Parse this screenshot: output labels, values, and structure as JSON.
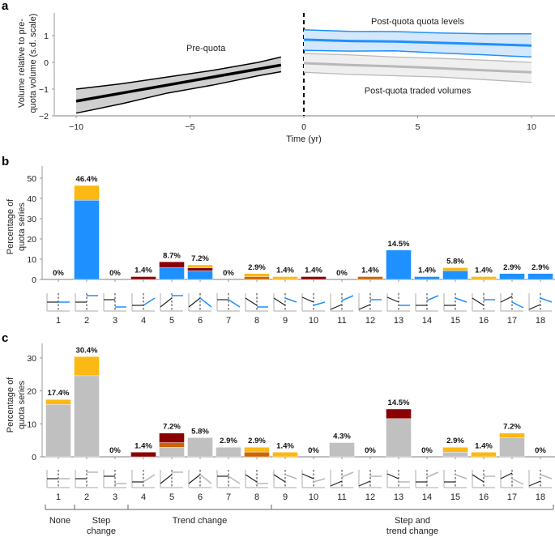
{
  "colors": {
    "blue": "#1e90ff",
    "blue_band": "#d4e7fb",
    "gray_bar": "#c0c0c0",
    "gray_line": "#b8b8b8",
    "gray_band": "#efefef",
    "yellow": "#fdb913",
    "orange": "#cc6600",
    "darkred": "#8b0000",
    "black": "#000000"
  },
  "chart_data": [
    {
      "panel": "a",
      "type": "line",
      "xlabel": "Time (yr)",
      "ylabel": "Volume relative to pre-quota volume (s.d. scale)",
      "ylabel_lines": [
        "Volume relative to pre-",
        "quota volume (s.d. scale)"
      ],
      "xlim": [
        -11,
        11
      ],
      "ylim": [
        -2,
        1.8
      ],
      "xticks": [
        -10,
        -5,
        0,
        5,
        10
      ],
      "xtick_labels": [
        "−10",
        "−5",
        "0",
        "5",
        "10"
      ],
      "yticks": [
        1,
        0,
        -1,
        -2
      ],
      "ytick_labels": [
        "1",
        "0",
        "−1",
        "−2"
      ],
      "vline_x": 0,
      "series": [
        {
          "name": "Pre-quota",
          "color_key": "black",
          "x": [
            -10,
            -8,
            -6,
            -4,
            -2,
            -1
          ],
          "mean": [
            -1.45,
            -1.15,
            -0.85,
            -0.55,
            -0.25,
            -0.1
          ],
          "upper": [
            -1.0,
            -0.8,
            -0.55,
            -0.3,
            0.0,
            0.2
          ],
          "lower": [
            -1.9,
            -1.55,
            -1.15,
            -0.85,
            -0.5,
            -0.35
          ]
        },
        {
          "name": "Post-quota quota levels",
          "color_key": "blue",
          "x": [
            0,
            2,
            4,
            6,
            8,
            10
          ],
          "mean": [
            0.85,
            0.8,
            0.78,
            0.73,
            0.68,
            0.63
          ],
          "upper": [
            1.22,
            1.16,
            1.15,
            1.1,
            1.07,
            1.07
          ],
          "lower": [
            0.45,
            0.42,
            0.43,
            0.35,
            0.28,
            0.2
          ]
        },
        {
          "name": "Post-quota traded volumes",
          "color_key": "gray_line",
          "x": [
            0,
            2,
            4,
            6,
            8,
            10
          ],
          "mean": [
            -0.03,
            -0.1,
            -0.15,
            -0.22,
            -0.3,
            -0.37
          ],
          "upper": [
            0.33,
            0.28,
            0.2,
            0.15,
            0.08,
            0.0
          ],
          "lower": [
            -0.37,
            -0.45,
            -0.5,
            -0.55,
            -0.65,
            -0.75
          ]
        }
      ],
      "annotations": [
        {
          "text": "Pre-quota",
          "x": -4.3,
          "y": 0.55,
          "color_key": "black"
        },
        {
          "text": "Post-quota quota levels",
          "x": 5,
          "y": 1.55,
          "color_key": "blue"
        },
        {
          "text": "Post-quota traded volumes",
          "x": 5,
          "y": -1.05,
          "color_key": "gray_band_text"
        }
      ]
    },
    {
      "panel": "b",
      "type": "bar",
      "stacked": true,
      "ylabel": "Percentage of quota series",
      "ylabel_lines": [
        "Percentage of",
        "quota series"
      ],
      "ylim": [
        0,
        55
      ],
      "yticks": [
        0,
        10,
        20,
        30,
        40,
        50
      ],
      "categories": [
        "1",
        "2",
        "3",
        "4",
        "5",
        "6",
        "7",
        "8",
        "9",
        "10",
        "11",
        "12",
        "13",
        "14",
        "15",
        "16",
        "17",
        "18"
      ],
      "segment_order": [
        "blue",
        "orange",
        "darkred",
        "yellow"
      ],
      "series": [
        {
          "name": "blue",
          "values": [
            0,
            39.1,
            0,
            0,
            5.8,
            4.3,
            0,
            0,
            0,
            0,
            0,
            0,
            14.5,
            1.4,
            4.3,
            0,
            2.9,
            2.9
          ]
        },
        {
          "name": "orange",
          "values": [
            0,
            0,
            0,
            0,
            0,
            0,
            0,
            1.4,
            0,
            0,
            0,
            1.4,
            0,
            0,
            0,
            0,
            0,
            0
          ]
        },
        {
          "name": "darkred",
          "values": [
            0,
            0,
            0,
            1.4,
            2.9,
            1.45,
            0,
            0,
            0,
            1.4,
            0,
            0,
            0,
            0,
            0,
            0,
            0,
            0
          ]
        },
        {
          "name": "yellow",
          "values": [
            0,
            7.3,
            0,
            0,
            0,
            1.45,
            0,
            1.5,
            1.4,
            0,
            0,
            0,
            0,
            0,
            1.5,
            1.4,
            0,
            0
          ]
        }
      ],
      "totals": [
        0,
        46.4,
        0,
        1.4,
        8.7,
        7.2,
        0,
        2.9,
        1.4,
        1.4,
        0,
        1.4,
        14.5,
        1.4,
        5.8,
        1.4,
        2.9,
        2.9
      ],
      "total_labels": [
        "0%",
        "46.4%",
        "0%",
        "1.4%",
        "8.7%",
        "7.2%",
        "0%",
        "2.9%",
        "1.4%",
        "1.4%",
        "0%",
        "1.4%",
        "14.5%",
        "1.4%",
        "5.8%",
        "1.4%",
        "2.9%",
        "2.9%"
      ],
      "icon_accent": "blue"
    },
    {
      "panel": "c",
      "type": "bar",
      "stacked": true,
      "ylabel": "Percentage of quota series",
      "ylabel_lines": [
        "Percentage of",
        "quota series"
      ],
      "ylim": [
        0,
        35
      ],
      "yticks": [
        0,
        10,
        20,
        30
      ],
      "categories": [
        "1",
        "2",
        "3",
        "4",
        "5",
        "6",
        "7",
        "8",
        "9",
        "10",
        "11",
        "12",
        "13",
        "14",
        "15",
        "16",
        "17",
        "18"
      ],
      "segment_order": [
        "gray_bar",
        "orange",
        "darkred",
        "yellow"
      ],
      "series": [
        {
          "name": "gray_bar",
          "values": [
            15.9,
            24.6,
            0,
            0,
            2.9,
            5.8,
            2.9,
            0,
            0,
            0,
            4.3,
            0,
            11.6,
            0,
            1.4,
            0,
            5.8,
            0
          ]
        },
        {
          "name": "orange",
          "values": [
            0,
            0,
            0,
            0,
            1.4,
            0,
            0,
            1.45,
            0,
            0,
            0,
            0,
            0,
            0,
            0,
            0,
            0,
            0
          ]
        },
        {
          "name": "darkred",
          "values": [
            0,
            0,
            0,
            1.4,
            2.9,
            0,
            0,
            0,
            0,
            0,
            0,
            0,
            2.9,
            0,
            0,
            0,
            0,
            0
          ]
        },
        {
          "name": "yellow",
          "values": [
            1.5,
            5.8,
            0,
            0,
            0,
            0,
            0,
            1.45,
            1.4,
            0,
            0,
            0,
            0,
            0,
            1.5,
            1.4,
            1.4,
            0
          ]
        }
      ],
      "totals": [
        17.4,
        30.4,
        0,
        1.4,
        7.2,
        5.8,
        2.9,
        2.9,
        1.4,
        0,
        4.3,
        0,
        14.5,
        0,
        2.9,
        1.4,
        7.2,
        0
      ],
      "total_labels": [
        "17.4%",
        "30.4%",
        "0%",
        "1.4%",
        "7.2%",
        "5.8%",
        "2.9%",
        "2.9%",
        "1.4%",
        "0%",
        "4.3%",
        "0%",
        "14.5%",
        "0%",
        "2.9%",
        "1.4%",
        "7.2%",
        "0%"
      ],
      "icon_accent": "gray_line"
    }
  ],
  "panels": {
    "a": {
      "letter": "a"
    },
    "b": {
      "letter": "b"
    },
    "c": {
      "letter": "c"
    }
  },
  "icons": [
    {
      "id": 1,
      "pre": "flat-mid",
      "post": "flat-mid"
    },
    {
      "id": 2,
      "pre": "flat-mid",
      "post": "flat-high"
    },
    {
      "id": 3,
      "pre": "flat-high",
      "post": "flat-low"
    },
    {
      "id": 4,
      "pre": "flat-low",
      "post": "up"
    },
    {
      "id": 5,
      "pre": "up",
      "post": "flat-high"
    },
    {
      "id": 6,
      "pre": "up",
      "post": "down-from-peak"
    },
    {
      "id": 7,
      "pre": "flat-high",
      "post": "down"
    },
    {
      "id": 8,
      "pre": "down",
      "post": "flat-low"
    },
    {
      "id": 9,
      "pre": "down",
      "post": "down-jump-up"
    },
    {
      "id": 10,
      "pre": "down-high",
      "post": "up-jump-down"
    },
    {
      "id": 11,
      "pre": "up-low",
      "post": "up-jump-up"
    },
    {
      "id": 12,
      "pre": "up-low",
      "post": "flat-jump-up"
    },
    {
      "id": 13,
      "pre": "down-high",
      "post": "flat-jump-down"
    },
    {
      "id": 14,
      "pre": "flat-low",
      "post": "up-jump-up"
    },
    {
      "id": 15,
      "pre": "flat-low",
      "post": "down-jump-up"
    },
    {
      "id": 16,
      "pre": "down",
      "post": "flat-jump-up"
    },
    {
      "id": 17,
      "pre": "up-high",
      "post": "down-jump-down"
    },
    {
      "id": 18,
      "pre": "up-low",
      "post": "down-jump-up"
    }
  ],
  "groups": [
    {
      "label_lines": [
        "None"
      ],
      "from": 1,
      "to": 1
    },
    {
      "label_lines": [
        "Step",
        "change"
      ],
      "from": 2,
      "to": 3
    },
    {
      "label_lines": [
        "Trend change"
      ],
      "from": 4,
      "to": 8
    },
    {
      "label_lines": [
        "Step and",
        "trend change"
      ],
      "from": 9,
      "to": 18
    }
  ]
}
